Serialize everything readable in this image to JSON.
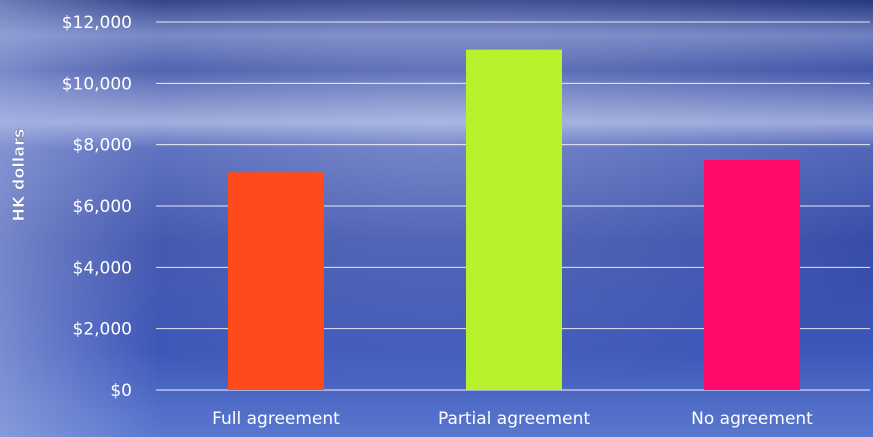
{
  "chart_data": {
    "type": "bar",
    "title": "",
    "xlabel": "",
    "ylabel": "HK dollars",
    "categories": [
      "Full agreement",
      "Partial agreement",
      "No agreement"
    ],
    "values": [
      7100,
      11100,
      7500
    ],
    "ylim": [
      0,
      12000
    ],
    "yticks": [
      "$0",
      "$2,000",
      "$4,000",
      "$6,000",
      "$8,000",
      "$10,000",
      "$12,000"
    ],
    "ytick_values": [
      0,
      2000,
      4000,
      6000,
      8000,
      10000,
      12000
    ],
    "bar_colors": [
      "#ff4a1c",
      "#b7f22c",
      "#ff0a6b"
    ],
    "grid": true,
    "legend": "none"
  },
  "colors": {
    "background_top": "#2b3c92",
    "background_mid": "#3a4fb0",
    "background_bottom": "#4d6cc7",
    "gridline": "#ffffff",
    "text": "#ffffff"
  }
}
